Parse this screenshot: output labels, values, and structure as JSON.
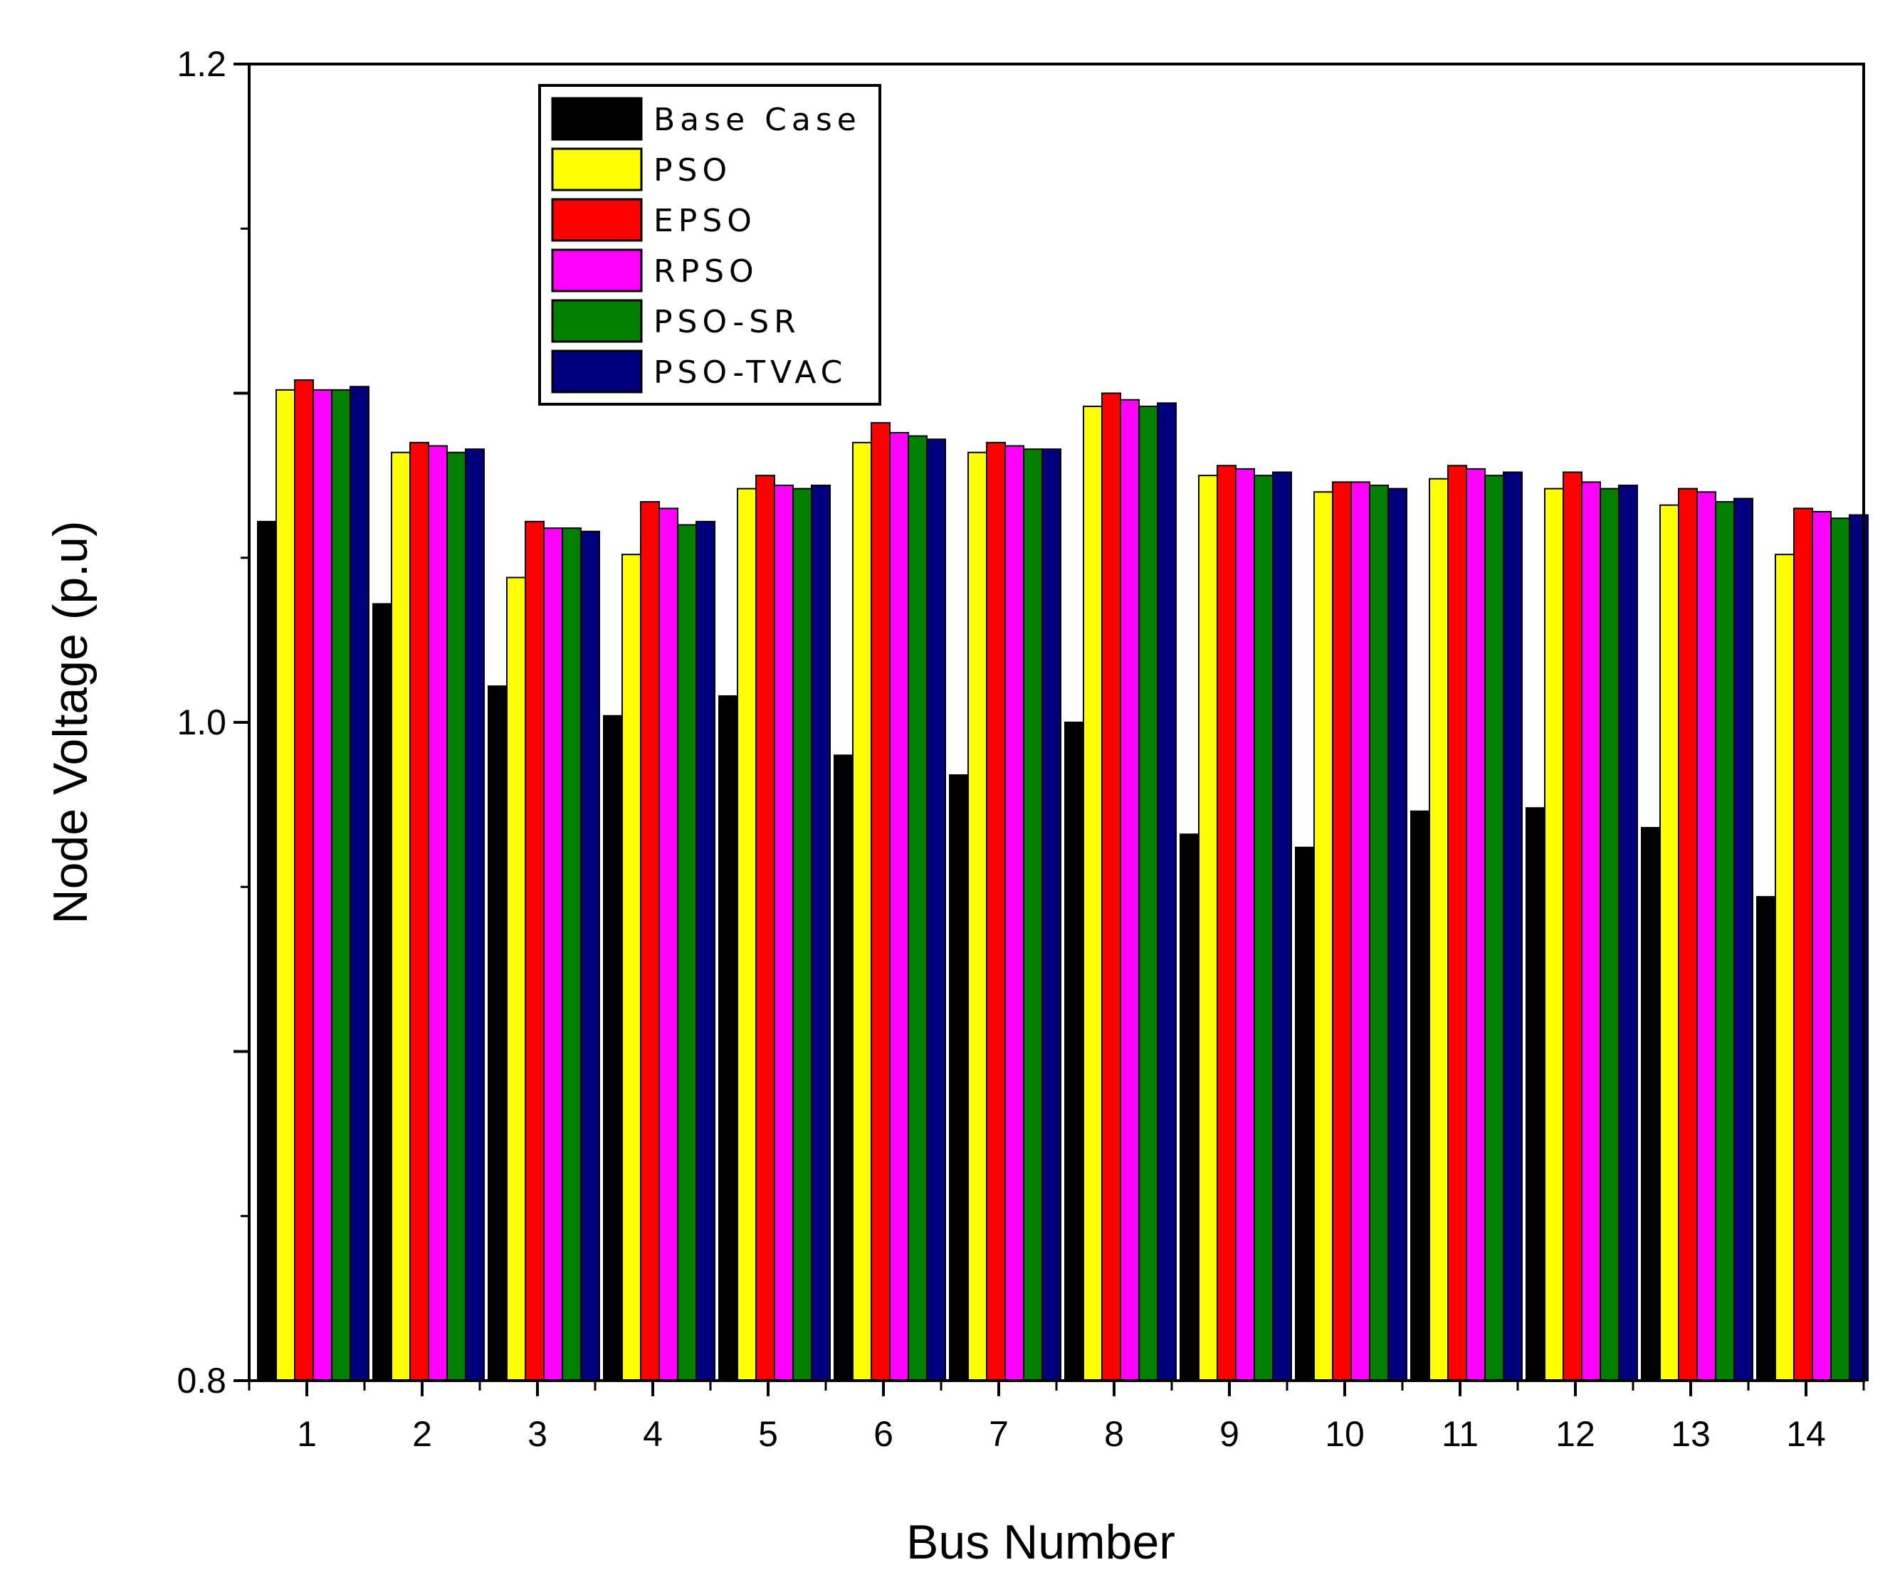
{
  "chart_data": {
    "type": "bar",
    "title": "",
    "xlabel": "Bus Number",
    "ylabel": "Node Voltage (p.u)",
    "ylim": [
      0.8,
      1.2
    ],
    "y_tick_labels": [
      "0.8",
      "",
      "1.0",
      "",
      "1.2"
    ],
    "y_ticks": [
      0.8,
      0.9,
      1.0,
      1.1,
      1.2
    ],
    "grid": false,
    "legend_position": "top-left",
    "categories": [
      "1",
      "2",
      "3",
      "4",
      "5",
      "6",
      "7",
      "8",
      "9",
      "10",
      "11",
      "12",
      "13",
      "14"
    ],
    "series": [
      {
        "name": "Base Case",
        "color": "#000000",
        "values": [
          1.061,
          1.036,
          1.011,
          1.002,
          1.008,
          0.99,
          0.984,
          1.0,
          0.966,
          0.962,
          0.973,
          0.974,
          0.968,
          0.947
        ]
      },
      {
        "name": "PSO",
        "color": "#ffff00",
        "values": [
          1.101,
          1.082,
          1.044,
          1.051,
          1.071,
          1.085,
          1.082,
          1.096,
          1.075,
          1.07,
          1.074,
          1.071,
          1.066,
          1.051
        ]
      },
      {
        "name": "EPSO",
        "color": "#ff0000",
        "values": [
          1.104,
          1.085,
          1.061,
          1.067,
          1.075,
          1.091,
          1.085,
          1.1,
          1.078,
          1.073,
          1.078,
          1.076,
          1.071,
          1.065
        ]
      },
      {
        "name": "RPSO",
        "color": "#ff00ff",
        "values": [
          1.101,
          1.084,
          1.059,
          1.065,
          1.072,
          1.088,
          1.084,
          1.098,
          1.077,
          1.073,
          1.077,
          1.073,
          1.07,
          1.064
        ]
      },
      {
        "name": "PSO-SR",
        "color": "#007f00",
        "values": [
          1.101,
          1.082,
          1.059,
          1.06,
          1.071,
          1.087,
          1.083,
          1.096,
          1.075,
          1.072,
          1.075,
          1.071,
          1.067,
          1.062
        ]
      },
      {
        "name": "PSO-TVAC",
        "color": "#00007f",
        "values": [
          1.102,
          1.083,
          1.058,
          1.061,
          1.072,
          1.086,
          1.083,
          1.097,
          1.076,
          1.071,
          1.076,
          1.072,
          1.068,
          1.063
        ]
      }
    ]
  }
}
